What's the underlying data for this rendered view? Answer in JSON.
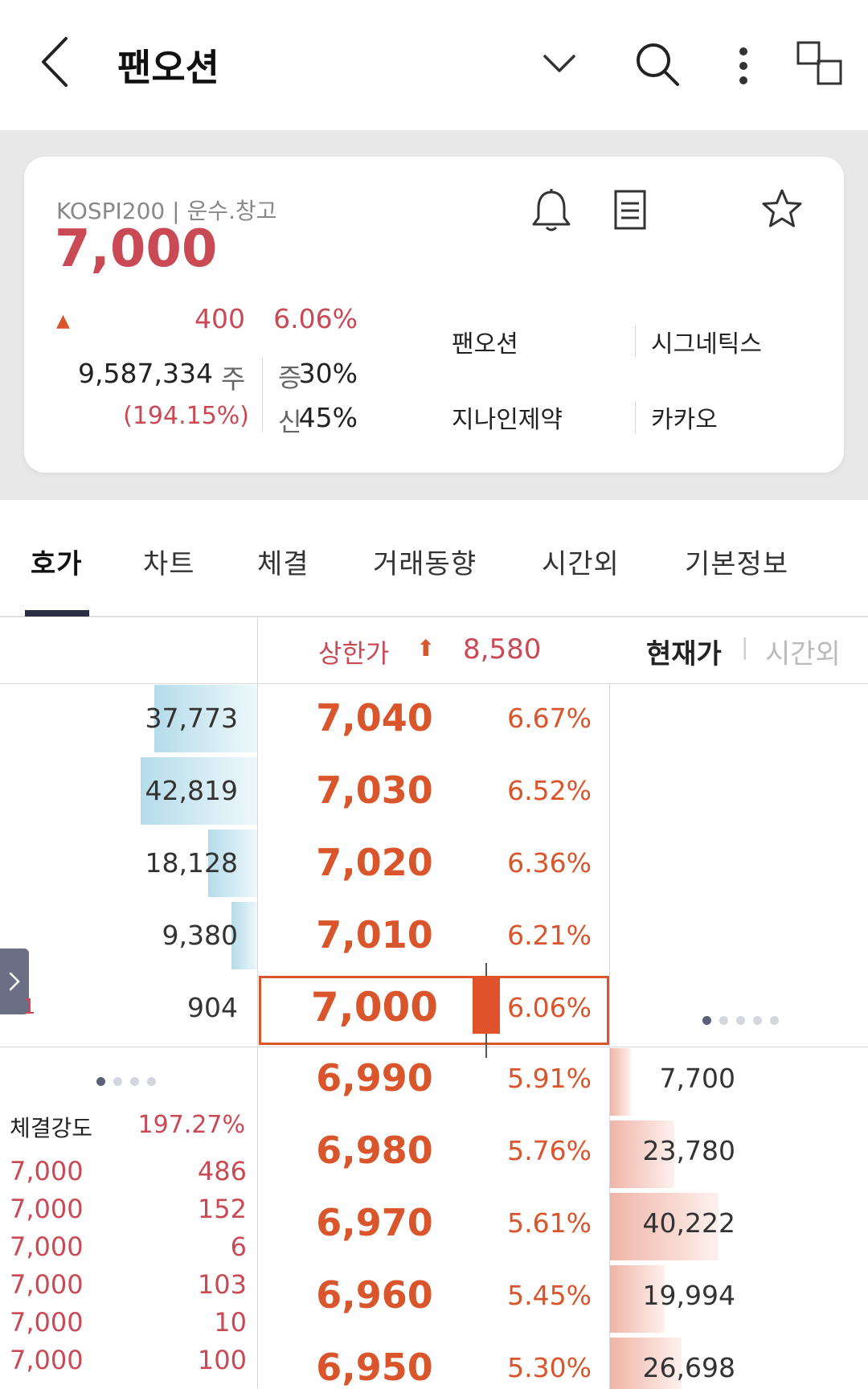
{
  "header": {
    "title": "팬오션",
    "icons": [
      "back-icon",
      "chevron-down-icon",
      "search-icon",
      "more-vertical-icon",
      "window-switch-icon"
    ]
  },
  "summary": {
    "market": "KOSPI200 | 운수.창고",
    "price": "7,000",
    "change_arrow": "▲",
    "change": "400",
    "change_pct": "6.06%",
    "volume": "9,587,334",
    "volume_unit": "주",
    "volume_ratio": "(194.15%)",
    "margin_label_1": "증",
    "margin_value_1": "30%",
    "margin_label_2": "신",
    "margin_value_2": "45%",
    "related": [
      "팬오션",
      "시그네틱스",
      "지나인제약",
      "카카오"
    ],
    "icons": [
      "bell-icon",
      "memo-icon",
      "star-icon"
    ],
    "colors": {
      "up": "#c94a55",
      "accent": "#d9552c"
    }
  },
  "tabs": [
    "호가",
    "차트",
    "체결",
    "거래동향",
    "시간외",
    "기본정보"
  ],
  "orderbook": {
    "upper_limit_label": "상한가",
    "upper_limit_arrow": "⬆",
    "upper_limit_value": "8,580",
    "view_current": "현재가",
    "view_separator": "|",
    "view_after": "시간외",
    "asks": [
      {
        "qty": "37,773",
        "price": "7,040",
        "pct": "6.67%",
        "level": 0.88
      },
      {
        "qty": "42,819",
        "price": "7,030",
        "pct": "6.52%",
        "level": 1.0
      },
      {
        "qty": "18,128",
        "price": "7,020",
        "pct": "6.36%",
        "level": 0.42
      },
      {
        "qty": "9,380",
        "price": "7,010",
        "pct": "6.21%",
        "level": 0.22
      },
      {
        "qty": "904",
        "price": "7,000",
        "pct": "6.06%",
        "level": 0.0
      }
    ],
    "bids": [
      {
        "qty": "7,700",
        "price": "6,990",
        "pct": "5.91%",
        "level": 0.19
      },
      {
        "qty": "23,780",
        "price": "6,980",
        "pct": "5.76%",
        "level": 0.59
      },
      {
        "qty": "40,222",
        "price": "6,970",
        "pct": "5.61%",
        "level": 1.0
      },
      {
        "qty": "19,994",
        "price": "6,960",
        "pct": "5.45%",
        "level": 0.5
      },
      {
        "qty": "26,698",
        "price": "6,950",
        "pct": "5.30%",
        "level": 0.66
      }
    ],
    "side_marker": "1",
    "strength_label": "체결강도",
    "strength_value": "197.27%",
    "ticks": [
      {
        "price": "7,000",
        "qty": "486"
      },
      {
        "price": "7,000",
        "qty": "152"
      },
      {
        "price": "7,000",
        "qty": "6"
      },
      {
        "price": "7,000",
        "qty": "103"
      },
      {
        "price": "7,000",
        "qty": "10"
      },
      {
        "price": "7,000",
        "qty": "100"
      }
    ]
  }
}
